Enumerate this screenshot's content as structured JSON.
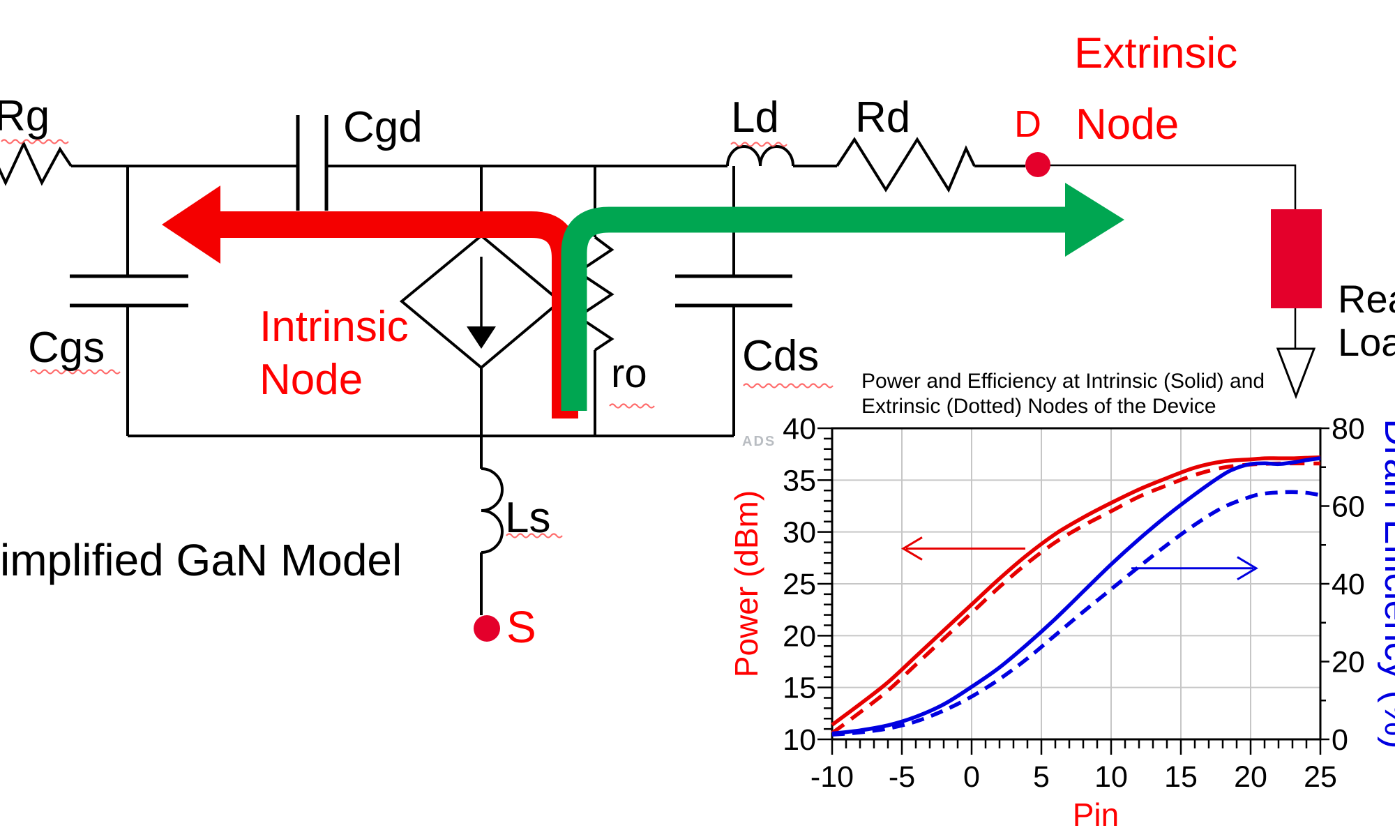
{
  "circuit": {
    "caption": "implified GaN Model",
    "labels": {
      "rg": "Rg",
      "cgd": "Cgd",
      "cgs": "Cgs",
      "cds": "Cds",
      "ro": "ro",
      "ld": "Ld",
      "rd": "Rd",
      "ls": "Ls",
      "drain": "D",
      "source": "S"
    },
    "annotations": {
      "intrinsic_line1": "Intrinsic",
      "intrinsic_line2": "Node",
      "extrinsic_line1": "Extrinsic",
      "extrinsic_line2": "Node",
      "real_load_line1": "Real",
      "real_load_line2": "Load"
    },
    "colors": {
      "wire": "#000000",
      "red_text": "#ff0000",
      "red_arrow": "#f40000",
      "green_arrow": "#00a651",
      "node_dot": "#e4002b",
      "load_fill": "#e4002b"
    }
  },
  "chart_data": {
    "type": "line",
    "title_line1": "Power and Efficiency at Intrinsic (Solid) and",
    "title_line2": "Extrinsic (Dotted) Nodes of the Device",
    "xlabel": "Pin",
    "ylabel_left": "Power (dBm)",
    "ylabel_right": "Drain Efficiency (%)",
    "watermark": "ADS",
    "xlim": [
      -10,
      25
    ],
    "ylim_left": [
      10,
      40
    ],
    "ylim_right": [
      0,
      80
    ],
    "x_ticks": [
      -10,
      -5,
      0,
      5,
      10,
      15,
      20,
      25
    ],
    "y_left_ticks": [
      10,
      15,
      20,
      25,
      30,
      35,
      40
    ],
    "y_right_ticks": [
      0,
      20,
      40,
      60,
      80
    ],
    "grid": true,
    "legend": "none (solid = intrinsic node, dashed = extrinsic node)",
    "series": [
      {
        "name": "Output power at intrinsic node (solid)",
        "axis": "left",
        "style": "solid",
        "color": "#e60000",
        "points": [
          [
            -10,
            11.4
          ],
          [
            -8,
            13.4
          ],
          [
            -6,
            15.5
          ],
          [
            -4,
            18.0
          ],
          [
            -2,
            20.5
          ],
          [
            0,
            23.0
          ],
          [
            2,
            25.5
          ],
          [
            4,
            27.8
          ],
          [
            6,
            29.8
          ],
          [
            8,
            31.4
          ],
          [
            10,
            32.8
          ],
          [
            12,
            34.1
          ],
          [
            14,
            35.2
          ],
          [
            16,
            36.2
          ],
          [
            18,
            36.8
          ],
          [
            20,
            37.0
          ],
          [
            21,
            37.1
          ],
          [
            22,
            37.1
          ],
          [
            23,
            37.1
          ],
          [
            24,
            37.15
          ],
          [
            25,
            37.2
          ]
        ]
      },
      {
        "name": "Output power at extrinsic node (dotted)",
        "axis": "left",
        "style": "dashed",
        "color": "#e60000",
        "points": [
          [
            -10,
            10.6
          ],
          [
            -8,
            12.6
          ],
          [
            -6,
            14.7
          ],
          [
            -4,
            17.2
          ],
          [
            -2,
            19.7
          ],
          [
            0,
            22.2
          ],
          [
            2,
            24.7
          ],
          [
            4,
            27.0
          ],
          [
            6,
            29.0
          ],
          [
            8,
            30.6
          ],
          [
            10,
            32.0
          ],
          [
            12,
            33.4
          ],
          [
            14,
            34.5
          ],
          [
            16,
            35.5
          ],
          [
            18,
            36.2
          ],
          [
            20,
            36.5
          ],
          [
            22,
            36.6
          ],
          [
            25,
            36.6
          ]
        ]
      },
      {
        "name": "Drain efficiency at intrinsic node (solid)",
        "axis": "right",
        "style": "solid",
        "color": "#0000e0",
        "points": [
          [
            -10,
            1.5
          ],
          [
            -8,
            2.3
          ],
          [
            -6,
            3.6
          ],
          [
            -4,
            5.8
          ],
          [
            -2,
            9.0
          ],
          [
            0,
            13.5
          ],
          [
            2,
            18.5
          ],
          [
            4,
            24.5
          ],
          [
            6,
            31.0
          ],
          [
            8,
            38.0
          ],
          [
            10,
            45.0
          ],
          [
            12,
            51.5
          ],
          [
            14,
            57.5
          ],
          [
            16,
            63.0
          ],
          [
            18,
            68.0
          ],
          [
            19,
            69.8
          ],
          [
            20,
            70.8
          ],
          [
            21,
            71.0
          ],
          [
            22,
            70.8
          ],
          [
            23,
            71.2
          ],
          [
            24,
            71.8
          ],
          [
            25,
            72.3
          ]
        ]
      },
      {
        "name": "Drain efficiency at extrinsic node (dotted)",
        "axis": "right",
        "style": "dashed",
        "color": "#0000e0",
        "points": [
          [
            -10,
            1.2
          ],
          [
            -8,
            1.8
          ],
          [
            -6,
            2.8
          ],
          [
            -4,
            4.6
          ],
          [
            -2,
            7.4
          ],
          [
            0,
            11.0
          ],
          [
            2,
            15.5
          ],
          [
            4,
            20.8
          ],
          [
            6,
            26.8
          ],
          [
            8,
            32.8
          ],
          [
            10,
            38.6
          ],
          [
            12,
            44.4
          ],
          [
            14,
            50.0
          ],
          [
            16,
            55.2
          ],
          [
            18,
            59.6
          ],
          [
            20,
            62.4
          ],
          [
            21,
            63.2
          ],
          [
            22,
            63.5
          ],
          [
            23,
            63.6
          ],
          [
            24,
            63.4
          ],
          [
            25,
            62.8
          ]
        ]
      }
    ],
    "annotations": [
      {
        "type": "arrow",
        "meaning": "power curves read left axis",
        "color": "#e60000",
        "axis": "left",
        "y": 28.4,
        "x_tail": 3.85,
        "x_tip": -4.9
      },
      {
        "type": "arrow",
        "meaning": "efficiency curves read right axis",
        "color": "#0000e0",
        "axis": "right",
        "y": 44.0,
        "x_tail": 11.45,
        "x_tip": 20.4
      }
    ]
  }
}
